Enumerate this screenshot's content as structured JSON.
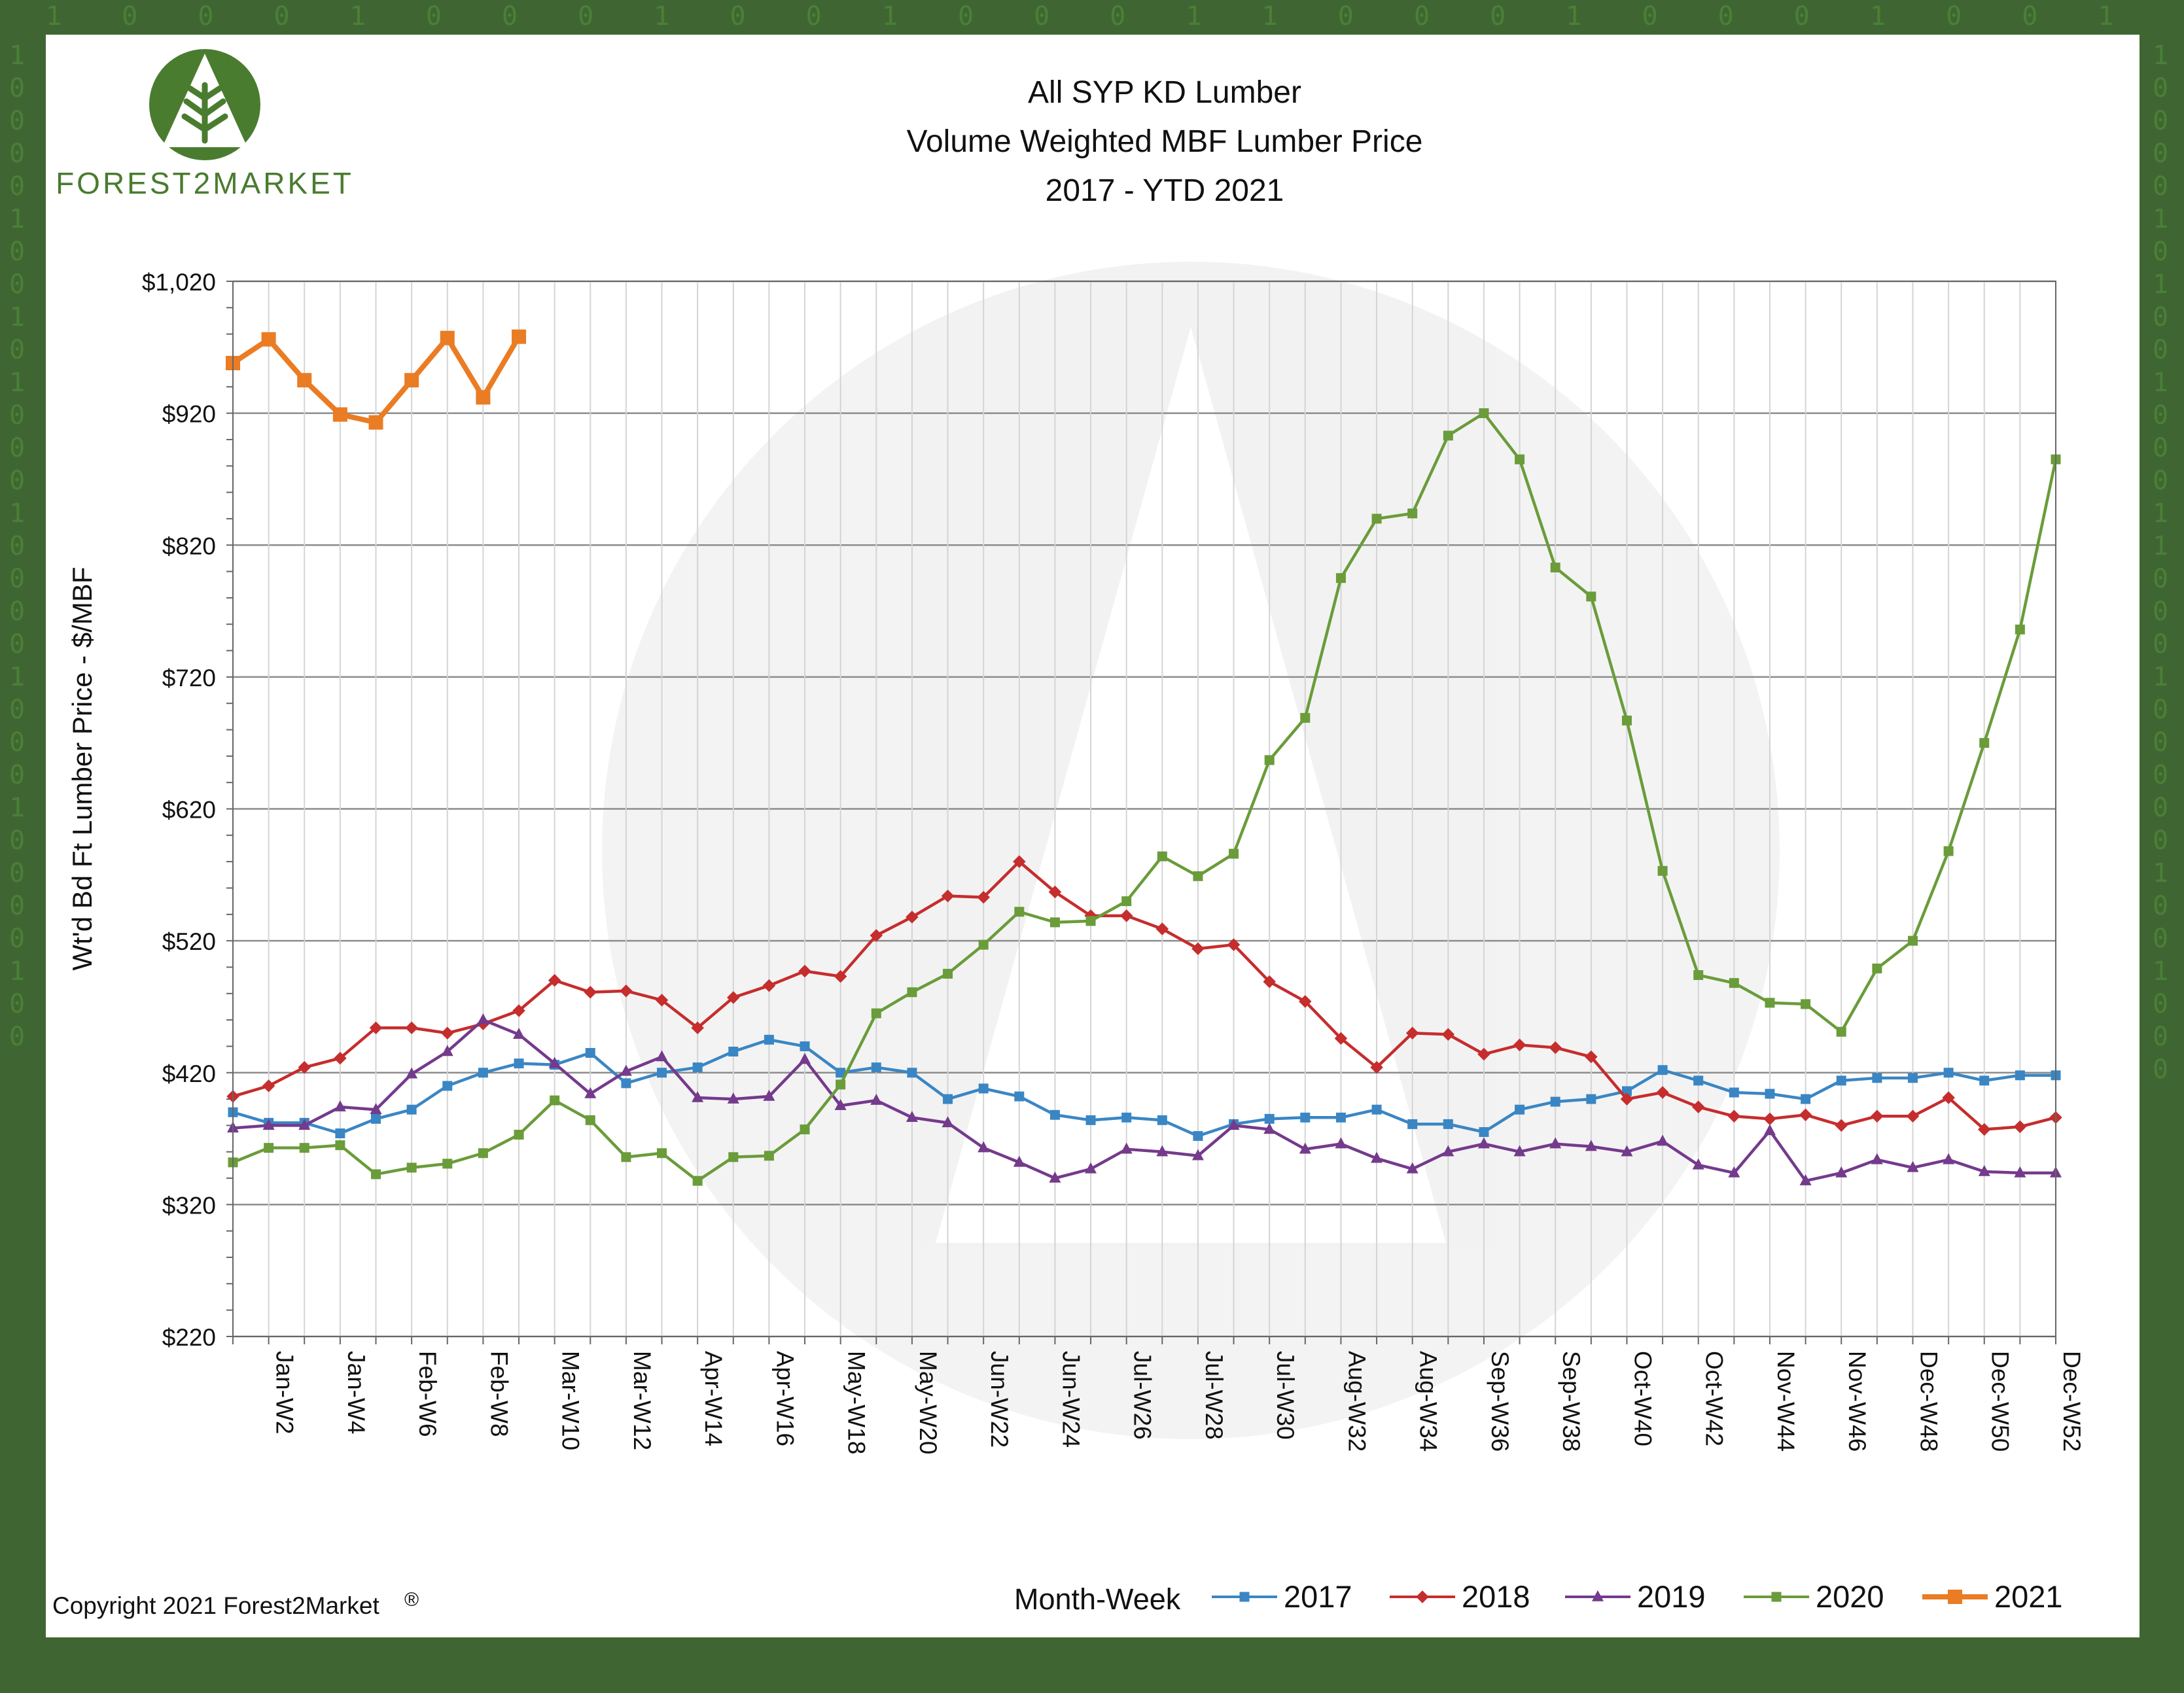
{
  "brand": {
    "name": "FOREST2MARKET",
    "logo_icon": "tree-logo-icon",
    "color": "#4a7c2f"
  },
  "copyright": "Copyright 2021 Forest2Market",
  "copyright_mark": "®",
  "chart_data": {
    "type": "line",
    "title": [
      "All SYP KD Lumber",
      "Volume Weighted MBF Lumber Price",
      "2017 - YTD 2021"
    ],
    "ylabel": "Wt'd Bd Ft Lumber Price - $/MBF",
    "xlabel": "Month-Week",
    "ylim": [
      220,
      1020
    ],
    "yticks": [
      220,
      320,
      420,
      520,
      620,
      720,
      820,
      920,
      1020
    ],
    "ytick_labels": [
      "$220",
      "$320",
      "$420",
      "$520",
      "$620",
      "$720",
      "$820",
      "$920",
      "$1,020"
    ],
    "x_labels": [
      "Jan-W2",
      "Jan-W4",
      "Feb-W6",
      "Feb-W8",
      "Mar-W10",
      "Mar-W12",
      "Apr-W14",
      "Apr-W16",
      "May-W18",
      "May-W20",
      "Jun-W22",
      "Jun-W24",
      "Jul-W26",
      "Jul-W28",
      "Jul-W30",
      "Aug-W32",
      "Aug-W34",
      "Sep-W36",
      "Sep-W38",
      "Oct-W40",
      "Oct-W42",
      "Nov-W44",
      "Nov-W46",
      "Dec-W48",
      "Dec-W50",
      "Dec-W52"
    ],
    "x_label_weeks": [
      2,
      4,
      6,
      8,
      10,
      12,
      14,
      16,
      18,
      20,
      22,
      24,
      26,
      28,
      30,
      32,
      34,
      36,
      38,
      40,
      42,
      44,
      46,
      48,
      50,
      52
    ],
    "weeks": [
      1,
      52
    ],
    "grid": true,
    "legend_position": "bottom-right",
    "series": [
      {
        "name": "2017",
        "color": "#3a86c4",
        "marker": "square",
        "values": [
          390,
          382,
          382,
          374,
          385,
          392,
          410,
          420,
          427,
          426,
          435,
          412,
          420,
          424,
          436,
          445,
          440,
          420,
          424,
          420,
          400,
          408,
          402,
          388,
          384,
          386,
          384,
          372,
          381,
          385,
          386,
          386,
          392,
          381,
          381,
          375,
          392,
          398,
          400,
          406,
          422,
          414,
          405,
          404,
          400,
          414,
          416,
          416,
          420,
          414,
          418,
          418
        ]
      },
      {
        "name": "2018",
        "color": "#c62d2d",
        "marker": "diamond",
        "values": [
          402,
          410,
          424,
          431,
          454,
          454,
          450,
          457,
          467,
          490,
          481,
          482,
          475,
          454,
          477,
          486,
          497,
          493,
          524,
          538,
          554,
          553,
          580,
          557,
          539,
          539,
          529,
          514,
          517,
          489,
          474,
          446,
          424,
          450,
          449,
          434,
          441,
          439,
          432,
          400,
          405,
          394,
          387,
          385,
          388,
          380,
          387,
          387,
          401,
          377,
          379,
          386
        ]
      },
      {
        "name": "2019",
        "color": "#743a8c",
        "marker": "triangle",
        "values": [
          378,
          380,
          380,
          394,
          392,
          419,
          436,
          460,
          449,
          427,
          404,
          421,
          432,
          401,
          400,
          402,
          430,
          395,
          399,
          386,
          382,
          363,
          352,
          340,
          347,
          362,
          360,
          357,
          380,
          377,
          362,
          366,
          355,
          347,
          360,
          366,
          360,
          366,
          364,
          360,
          368,
          350,
          344,
          376,
          338,
          344,
          354,
          348,
          354,
          345,
          344,
          344
        ]
      },
      {
        "name": "2020",
        "color": "#6a9c3a",
        "marker": "square",
        "values": [
          352,
          363,
          363,
          365,
          343,
          348,
          351,
          359,
          373,
          399,
          384,
          356,
          359,
          338,
          356,
          357,
          377,
          411,
          465,
          481,
          495,
          517,
          542,
          534,
          535,
          550,
          584,
          569,
          586,
          657,
          689,
          795,
          840,
          844,
          903,
          920,
          885,
          803,
          781,
          687,
          573,
          494,
          488,
          473,
          472,
          451,
          499,
          520,
          588,
          670,
          756,
          885
        ]
      },
      {
        "name": "2021",
        "color": "#ea7c24",
        "marker": "square",
        "values": [
          958,
          976,
          945,
          919,
          913,
          945,
          977,
          932,
          978
        ]
      }
    ]
  }
}
